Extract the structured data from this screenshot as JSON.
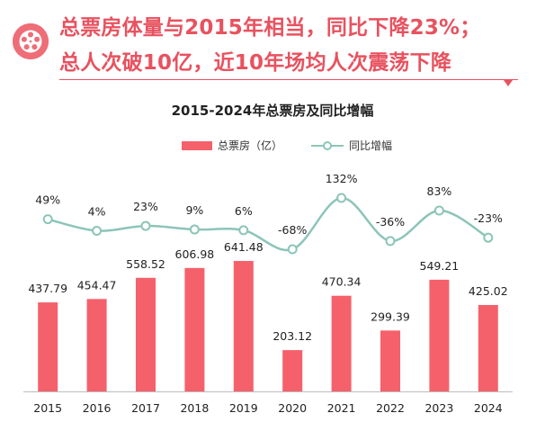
{
  "header": {
    "line1": "总票房体量与2015年相当，同比下降23%；",
    "line2": "总人次破10亿，近10年场均人次震荡下降"
  },
  "colors": {
    "accent": "#e8525f",
    "bar": "#f5616b",
    "line": "#8cc5b8",
    "marker_fill": "#ffffff"
  },
  "chart_data": {
    "type": "bar",
    "title": "2015-2024年总票房及同比增幅",
    "categories": [
      "2015",
      "2016",
      "2017",
      "2018",
      "2019",
      "2020",
      "2021",
      "2022",
      "2023",
      "2024"
    ],
    "series": [
      {
        "name": "总票房（亿）",
        "type": "bar",
        "values": [
          437.79,
          454.47,
          558.52,
          606.98,
          641.48,
          203.12,
          470.34,
          299.39,
          549.21,
          425.02
        ],
        "labels": [
          "437.79",
          "454.47",
          "558.52",
          "606.98",
          "641.48",
          "203.12",
          "470.34",
          "299.39",
          "549.21",
          "425.02"
        ]
      },
      {
        "name": "同比增幅",
        "type": "line",
        "values": [
          49,
          4,
          23,
          9,
          6,
          -68,
          132,
          -36,
          83,
          -23
        ],
        "labels": [
          "49%",
          "4%",
          "23%",
          "9%",
          "6%",
          "-68%",
          "132%",
          "-36%",
          "83%",
          "-23%"
        ]
      }
    ],
    "xlabel": "",
    "ylabel": "",
    "legend": "top-center",
    "grid": false
  }
}
